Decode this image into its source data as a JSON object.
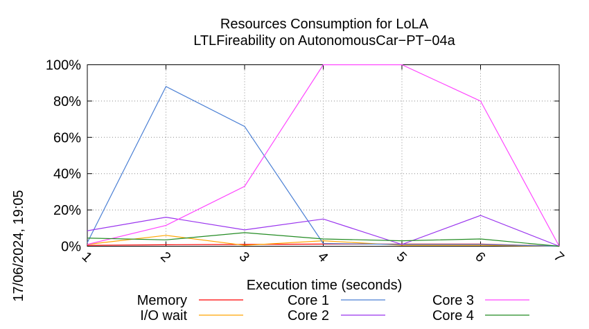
{
  "chart_data": {
    "type": "line",
    "title": "Resources Consumption for LoLA",
    "subtitle": "LTLFireability on AutonomousCar−PT−04a",
    "xlabel": "Execution time (seconds)",
    "ylabel": "",
    "timestamp": "17/06/2024, 19:05",
    "x": [
      1,
      2,
      3,
      4,
      5,
      6,
      7
    ],
    "x_tick_labels": [
      "1",
      "2",
      "3",
      "4",
      "5",
      "6",
      "7"
    ],
    "xlim": [
      1,
      7
    ],
    "ylim": [
      0,
      100
    ],
    "y_ticks": [
      0,
      20,
      40,
      60,
      80,
      100
    ],
    "y_tick_labels": [
      "0%",
      "20%",
      "40%",
      "60%",
      "80%",
      "100%"
    ],
    "grid": true,
    "legend_position": "bottom",
    "series": [
      {
        "name": "Memory",
        "color": "#ff0000",
        "values": [
          0.5,
          0.8,
          1.0,
          1.2,
          1.2,
          1.2,
          0
        ]
      },
      {
        "name": "I/O wait",
        "color": "#ffa500",
        "values": [
          1,
          6,
          0.5,
          3,
          0.5,
          0.5,
          0
        ]
      },
      {
        "name": "Core 1",
        "color": "#4a7fd4",
        "values": [
          2,
          88,
          66,
          1.5,
          1,
          1,
          0
        ]
      },
      {
        "name": "Core 2",
        "color": "#9933ee",
        "values": [
          8.5,
          16,
          9,
          15,
          1,
          17,
          0
        ]
      },
      {
        "name": "Core 3",
        "color": "#ff44ff",
        "values": [
          1,
          11.5,
          33,
          100,
          100,
          80,
          0
        ]
      },
      {
        "name": "Core 4",
        "color": "#228b22",
        "values": [
          4.5,
          3.5,
          7.5,
          4,
          3,
          4,
          0
        ]
      }
    ]
  }
}
